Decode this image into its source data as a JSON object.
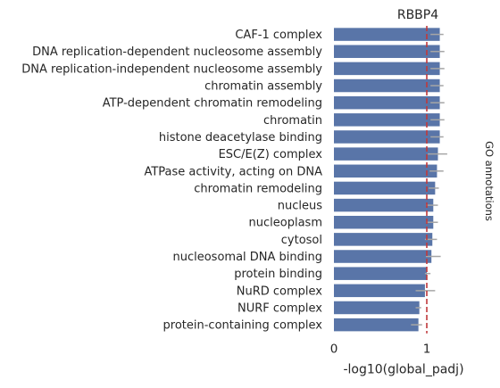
{
  "chart_data": {
    "type": "bar",
    "orientation": "horizontal",
    "title": "RBBP4",
    "xlabel": "-log10(global_padj)",
    "side_label": "GO annotations",
    "xlim": [
      0,
      1.5
    ],
    "xticks": [
      0,
      1
    ],
    "grid": false,
    "threshold": 1.0,
    "colors": {
      "bar": "#5975a8",
      "error": "#a6a6a6",
      "threshold": "#c0393b"
    },
    "categories": [
      "CAF-1 complex",
      "DNA replication-dependent nucleosome assembly",
      "DNA replication-independent nucleosome assembly",
      "chromatin assembly",
      "ATP-dependent chromatin remodeling",
      "chromatin",
      "histone deacetylase binding",
      "ESC/E(Z) complex",
      "ATPase activity, acting on DNA",
      "chromatin remodeling",
      "nucleus",
      "nucleoplasm",
      "cytosol",
      "nucleosomal DNA binding",
      "protein binding",
      "NuRD complex",
      "NURF complex",
      "protein-containing complex"
    ],
    "values": [
      1.14,
      1.14,
      1.14,
      1.14,
      1.14,
      1.14,
      1.14,
      1.12,
      1.11,
      1.09,
      1.07,
      1.07,
      1.06,
      1.05,
      1.0,
      0.98,
      0.92,
      0.91
    ],
    "error_low": [
      1.04,
      1.04,
      1.04,
      1.04,
      1.04,
      1.04,
      1.04,
      1.01,
      1.03,
      1.02,
      0.99,
      0.99,
      0.98,
      0.99,
      0.98,
      0.88,
      0.88,
      0.83
    ],
    "error_high": [
      1.18,
      1.19,
      1.19,
      1.18,
      1.19,
      1.19,
      1.18,
      1.22,
      1.18,
      1.13,
      1.12,
      1.12,
      1.11,
      1.15,
      1.04,
      1.09,
      0.94,
      0.95
    ]
  }
}
